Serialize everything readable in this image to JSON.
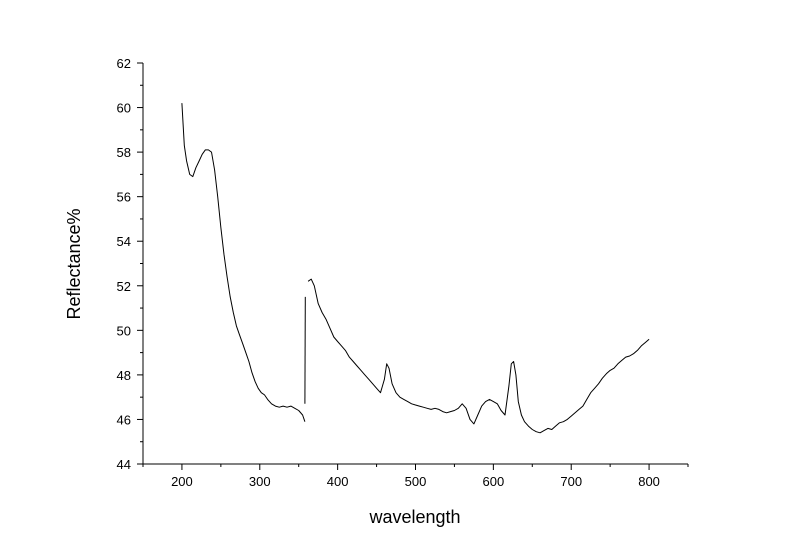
{
  "chart_data": {
    "type": "line",
    "title": "",
    "xlabel": "wavelength",
    "ylabel": "Reflectance%",
    "xlim": [
      150,
      850
    ],
    "ylim": [
      44,
      62
    ],
    "xticks": [
      200,
      300,
      400,
      500,
      600,
      700,
      800
    ],
    "yticks": [
      44,
      46,
      48,
      50,
      52,
      54,
      56,
      58,
      60,
      62
    ],
    "grid": false,
    "legend": "none",
    "line_color": "#000000",
    "series": [
      {
        "x": [
          200,
          203,
          206,
          210,
          214,
          218,
          222,
          226,
          230,
          234,
          238,
          242,
          246,
          250,
          254,
          258,
          262,
          266,
          270,
          274,
          278,
          282,
          286,
          290,
          294,
          298,
          302,
          306,
          310,
          315,
          320,
          325,
          330,
          335,
          340,
          345,
          350,
          355,
          358
        ],
        "y": [
          60.2,
          58.3,
          57.6,
          57.0,
          56.9,
          57.3,
          57.6,
          57.9,
          58.1,
          58.1,
          58.0,
          57.2,
          56.0,
          54.6,
          53.4,
          52.4,
          51.5,
          50.8,
          50.2,
          49.8,
          49.4,
          49.0,
          48.6,
          48.1,
          47.7,
          47.4,
          47.2,
          47.1,
          46.9,
          46.7,
          46.6,
          46.55,
          46.6,
          46.55,
          46.6,
          46.5,
          46.4,
          46.2,
          45.9
        ]
      },
      {
        "x": [
          358,
          358.5
        ],
        "y": [
          46.7,
          51.5
        ]
      },
      {
        "x": [
          362,
          366,
          370,
          375,
          380,
          385,
          390,
          395,
          400,
          405,
          410,
          415,
          420,
          425,
          430,
          435,
          440,
          445,
          450,
          455,
          460,
          463,
          466,
          470,
          475,
          480,
          485,
          490,
          495,
          500,
          505,
          510,
          515,
          520,
          525,
          530,
          535,
          540,
          545,
          550,
          555,
          560,
          565,
          570,
          575,
          580,
          585,
          590,
          595,
          600,
          605,
          610,
          615,
          620,
          623,
          626,
          629,
          632,
          636,
          640,
          645,
          650,
          655,
          660,
          665,
          670,
          675,
          680,
          685,
          690,
          695,
          700,
          705,
          710,
          715,
          720,
          725,
          730,
          735,
          740,
          745,
          750,
          755,
          760,
          765,
          770,
          775,
          780,
          785,
          790,
          795,
          800
        ],
        "y": [
          52.2,
          52.3,
          52.0,
          51.2,
          50.8,
          50.5,
          50.1,
          49.7,
          49.5,
          49.3,
          49.1,
          48.8,
          48.6,
          48.4,
          48.2,
          48.0,
          47.8,
          47.6,
          47.4,
          47.2,
          47.8,
          48.5,
          48.3,
          47.6,
          47.2,
          47.0,
          46.9,
          46.8,
          46.7,
          46.65,
          46.6,
          46.55,
          46.5,
          46.45,
          46.5,
          46.45,
          46.35,
          46.3,
          46.35,
          46.4,
          46.5,
          46.7,
          46.5,
          46.0,
          45.8,
          46.2,
          46.6,
          46.8,
          46.9,
          46.8,
          46.7,
          46.4,
          46.2,
          47.5,
          48.5,
          48.6,
          48.0,
          46.8,
          46.2,
          45.9,
          45.7,
          45.55,
          45.45,
          45.4,
          45.5,
          45.6,
          45.55,
          45.7,
          45.85,
          45.9,
          46.0,
          46.15,
          46.3,
          46.45,
          46.6,
          46.9,
          47.2,
          47.4,
          47.6,
          47.85,
          48.05,
          48.2,
          48.3,
          48.5,
          48.65,
          48.8,
          48.85,
          48.95,
          49.1,
          49.3,
          49.45,
          49.6
        ]
      }
    ]
  }
}
